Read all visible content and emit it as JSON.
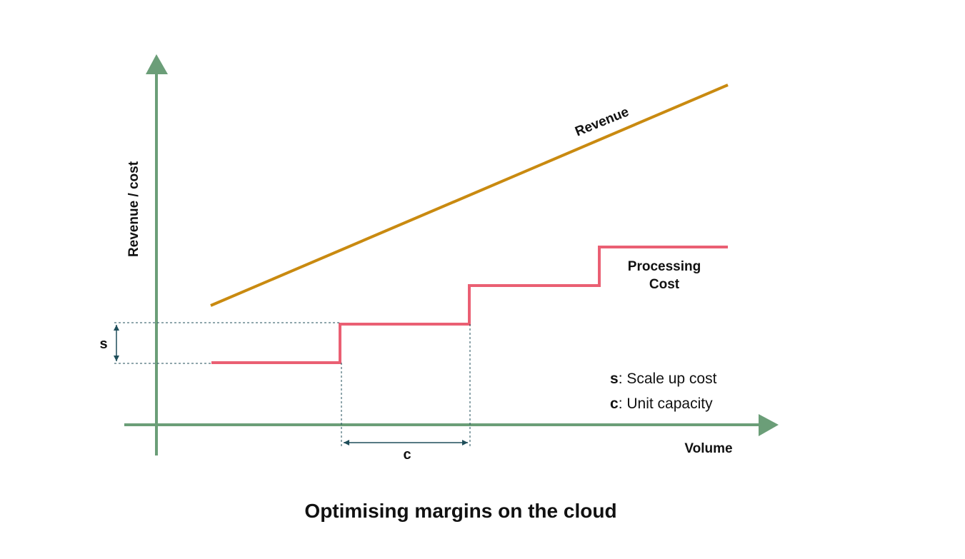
{
  "title": "Optimising margins on the cloud",
  "axes": {
    "y_label": "Revenue / cost",
    "x_label": "Volume"
  },
  "curves": {
    "revenue_label": "Revenue",
    "cost_label_line1": "Processing",
    "cost_label_line2": "Cost"
  },
  "dimensions": {
    "s_label": "s",
    "c_label": "c"
  },
  "legend": {
    "s_key": "s",
    "s_text": ": Scale up cost",
    "c_key": "c",
    "c_text": ": Unit capacity"
  },
  "colors": {
    "axis": "#6b9e78",
    "revenue": "#c98a10",
    "cost": "#ea5f73",
    "guide": "#1f4e5a"
  }
}
